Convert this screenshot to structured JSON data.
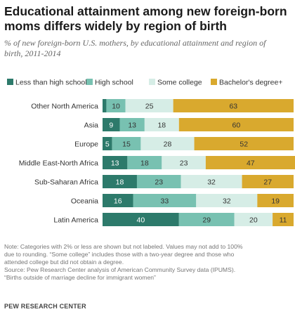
{
  "title_line1": "Educational attainment among new foreign-born",
  "title_line2": "moms differs widely by region of birth",
  "subtitle_line1": "% of new foreign-born U.S. mothers, by educational attainment and region of",
  "subtitle_line2": "birth, 2011-2014",
  "note_lines": [
    "Note: Categories with 2% or less are shown but not labeled. Values may not add to 100%",
    "due to rounding. “Some college” includes those with a two-year degree and those who",
    "attended college but did not obtain a degree.",
    "Source: Pew Research Center analysis of American Community Survey data (IPUMS).",
    "“Births outside of marriage decline for immigrant women”"
  ],
  "brand": "PEW RESEARCH CENTER",
  "chart_data": {
    "type": "bar",
    "orientation": "horizontal",
    "stacked": true,
    "xlim": [
      0,
      100
    ],
    "categories": [
      "Other North America",
      "Asia",
      "Europe",
      "Middle East-North Africa",
      "Sub-Saharan Africa",
      "Oceania",
      "Latin America"
    ],
    "series": [
      {
        "name": "Less than high school",
        "color": "#2d7a6b",
        "values": [
          2,
          9,
          5,
          13,
          18,
          16,
          40
        ],
        "labels": [
          "",
          "9",
          "5",
          "13",
          "18",
          "16",
          "40"
        ]
      },
      {
        "name": "High school",
        "color": "#78c1b1",
        "values": [
          10,
          13,
          15,
          18,
          23,
          33,
          29
        ],
        "labels": [
          "10",
          "13",
          "15",
          "18",
          "23",
          "33",
          "29"
        ]
      },
      {
        "name": "Some college",
        "color": "#d6ede6",
        "values": [
          25,
          18,
          28,
          23,
          32,
          32,
          20
        ],
        "labels": [
          "25",
          "18",
          "28",
          "23",
          "32",
          "32",
          "20"
        ]
      },
      {
        "name": "Bachelor's degree+",
        "color": "#d9a92e",
        "values": [
          63,
          60,
          52,
          47,
          27,
          19,
          11
        ],
        "labels": [
          "63",
          "60",
          "52",
          "47",
          "27",
          "19",
          "11"
        ]
      }
    ],
    "legend_position": "top",
    "label_colors": {
      "dark": "#ffffff",
      "light": "#333333"
    }
  }
}
